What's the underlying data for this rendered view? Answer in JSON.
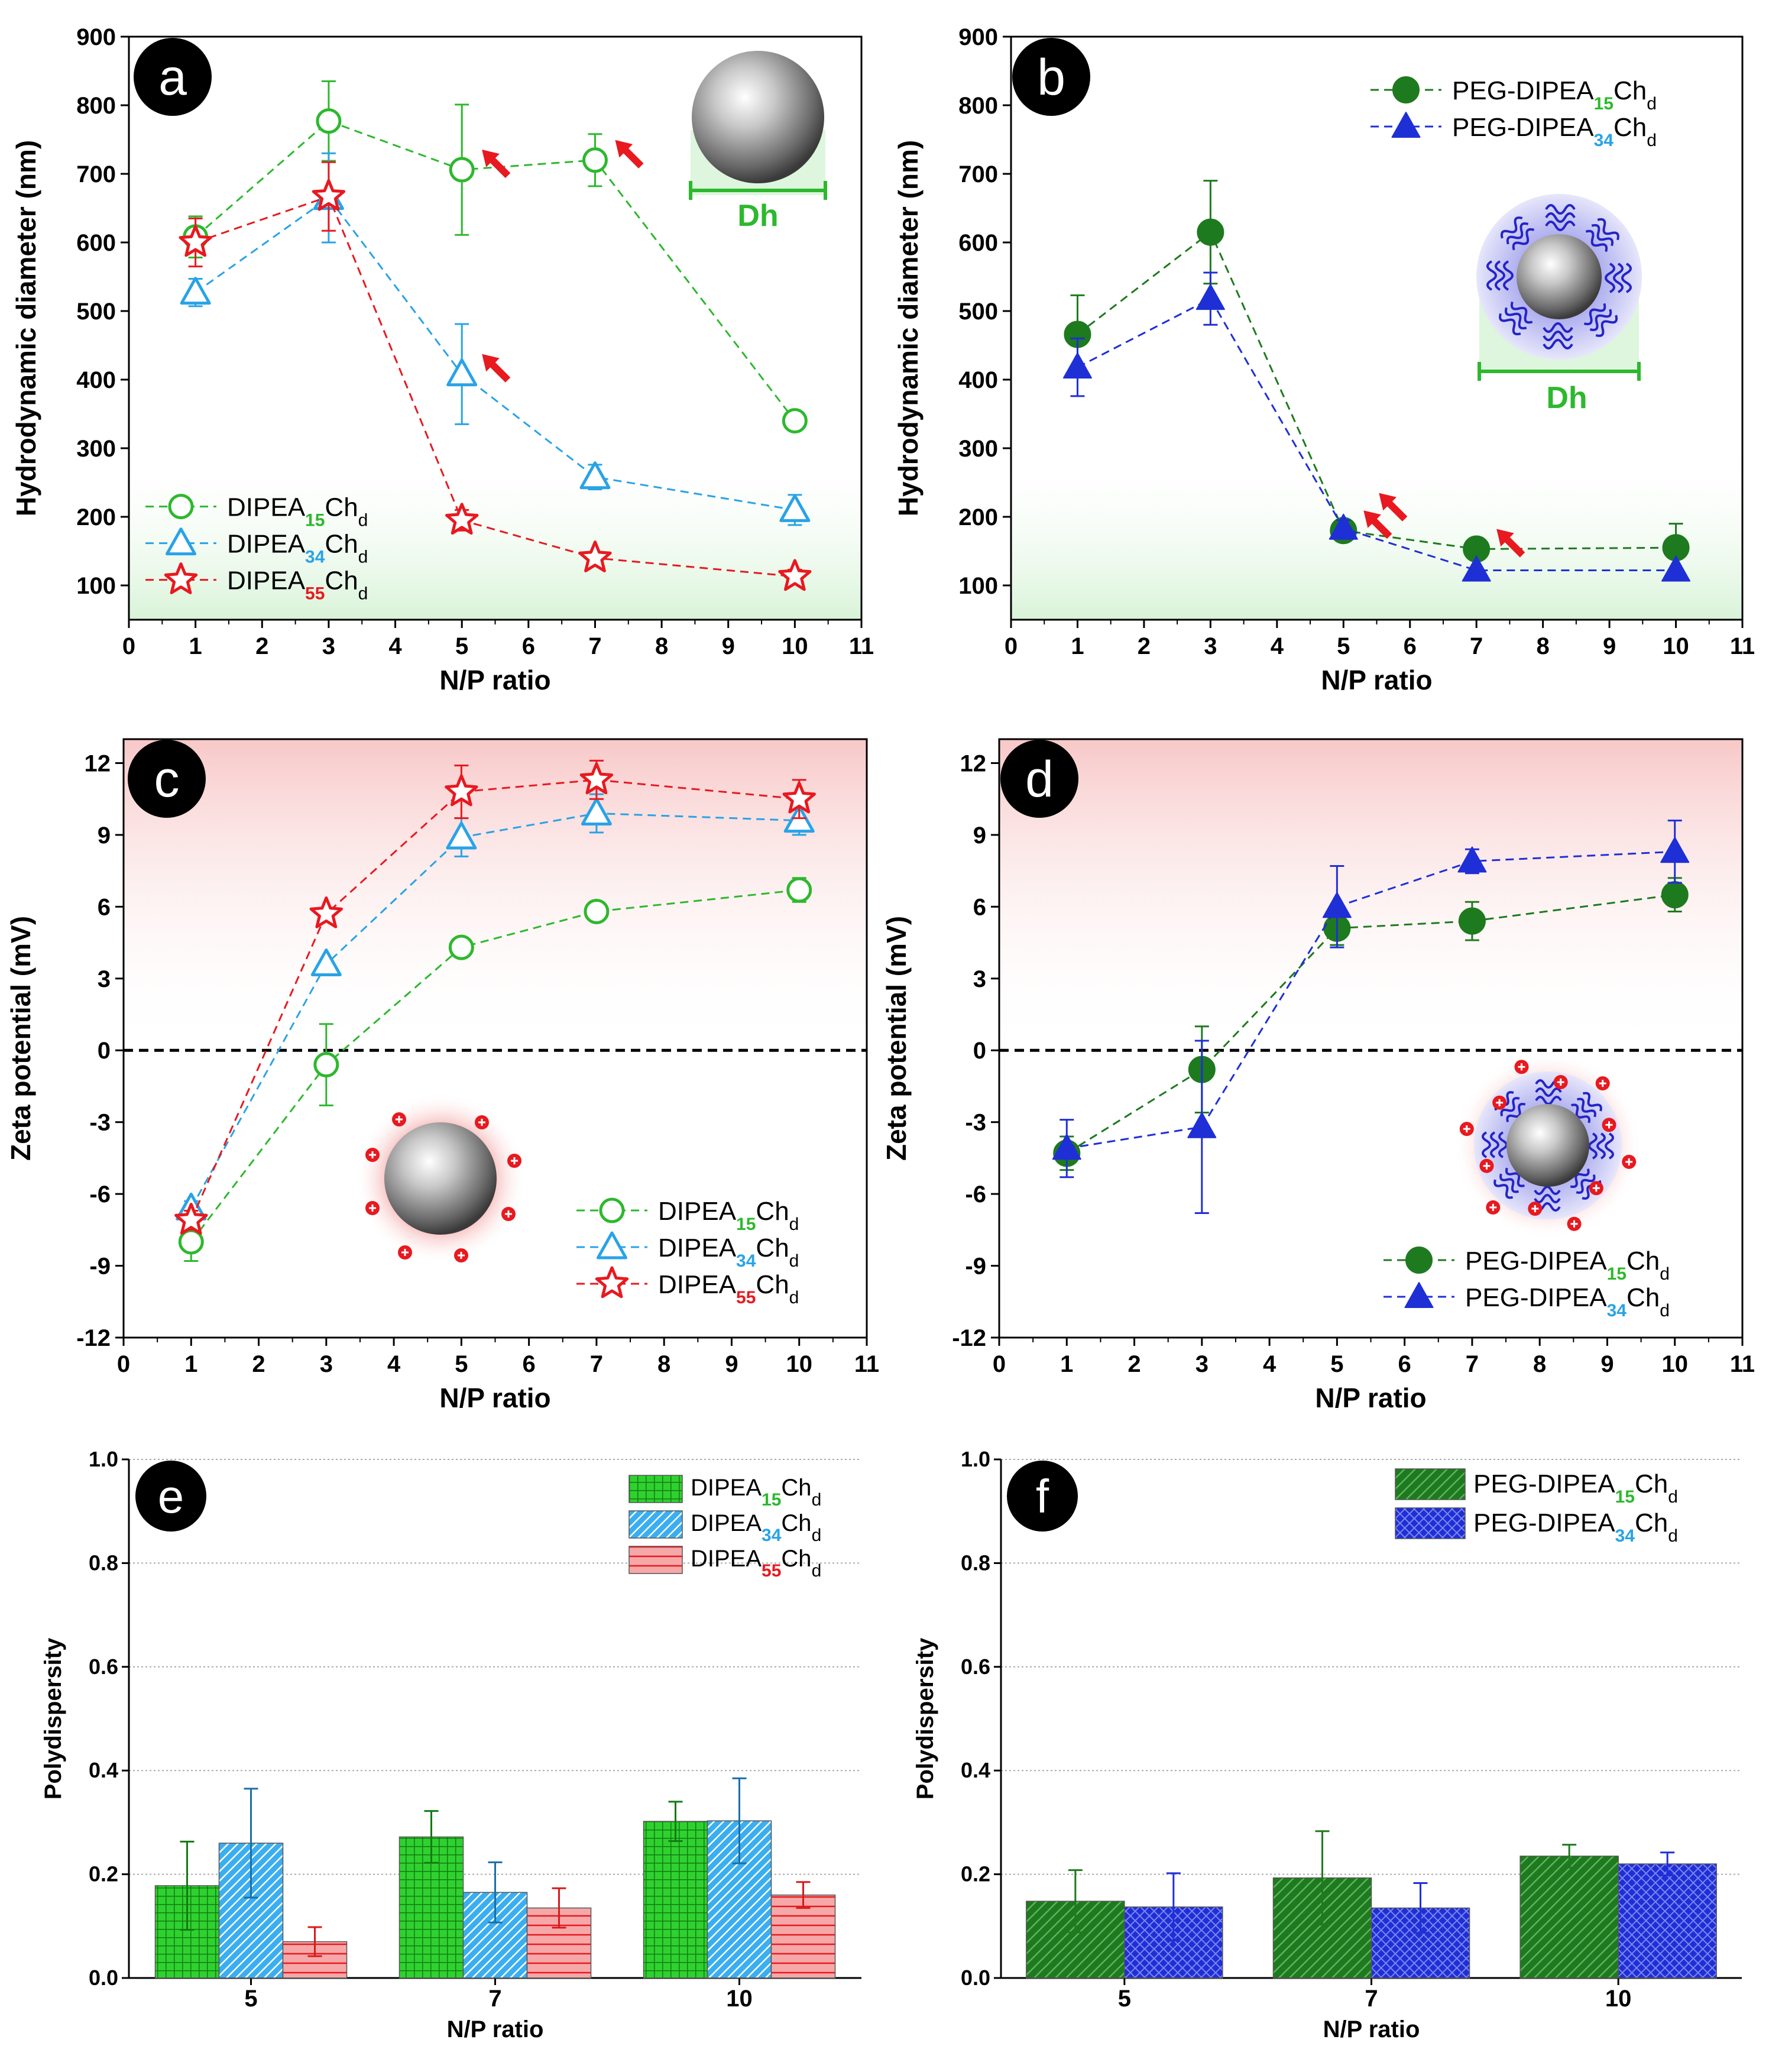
{
  "colors": {
    "green": "#2db82d",
    "blue": "#29a3e6",
    "red": "#e8191f",
    "darkgreen": "#1e7a1e",
    "navy": "#1f2fd6",
    "pink": "#f4a0a0",
    "arrow": "#e8191f"
  },
  "chart_data": [
    {
      "panel": "a",
      "type": "line",
      "ylabel": "Hydrodynamic diameter (nm)",
      "xlabel": "N/P ratio",
      "xlim": [
        0,
        11
      ],
      "ylim": [
        50,
        900
      ],
      "xticks": [
        0,
        1,
        2,
        3,
        4,
        5,
        6,
        7,
        8,
        9,
        10,
        11
      ],
      "yticks": [
        100,
        200,
        300,
        400,
        500,
        600,
        700,
        800,
        900
      ],
      "inset_label": "Dh",
      "legend_pos": "bottom-left",
      "arrows_at": [
        [
          5,
          0
        ],
        [
          7,
          0
        ],
        [
          5,
          1
        ]
      ],
      "series": [
        {
          "name": "DIPEA",
          "sub": "15",
          "tail": "Ch",
          "tailsub": "d",
          "color": "green",
          "marker": "circle-open",
          "x": [
            1,
            3,
            5,
            7,
            10
          ],
          "y": [
            608,
            777,
            706,
            720,
            340
          ],
          "err": [
            30,
            58,
            95,
            38,
            0
          ]
        },
        {
          "name": "DIPEA",
          "sub": "34",
          "tail": "Ch",
          "tailsub": "d",
          "color": "blue",
          "marker": "triangle-open",
          "x": [
            1,
            3,
            5,
            7,
            10
          ],
          "y": [
            527,
            665,
            408,
            258,
            210
          ],
          "err": [
            20,
            65,
            73,
            18,
            22
          ]
        },
        {
          "name": "DIPEA",
          "sub": "55",
          "tail": "Ch",
          "tailsub": "d",
          "color": "red",
          "marker": "star-open",
          "x": [
            1,
            3,
            5,
            7,
            10
          ],
          "y": [
            600,
            667,
            195,
            140,
            113
          ],
          "err": [
            35,
            50,
            15,
            0,
            10
          ]
        }
      ]
    },
    {
      "panel": "b",
      "type": "line",
      "ylabel": "Hydrodynamic diameter (nm)",
      "xlabel": "N/P ratio",
      "xlim": [
        0,
        11
      ],
      "ylim": [
        50,
        900
      ],
      "xticks": [
        0,
        1,
        2,
        3,
        4,
        5,
        6,
        7,
        8,
        9,
        10,
        11
      ],
      "yticks": [
        100,
        200,
        300,
        400,
        500,
        600,
        700,
        800,
        900
      ],
      "inset_label": "Dh",
      "legend_pos": "top-right",
      "arrows_at": [
        [
          5,
          0
        ],
        [
          5,
          1
        ],
        [
          7,
          0
        ]
      ],
      "series": [
        {
          "name": "PEG-DIPEA",
          "sub": "15",
          "tail": "Ch",
          "tailsub": "d",
          "color": "darkgreen",
          "marker": "circle-filled",
          "x": [
            1,
            3,
            5,
            7,
            10
          ],
          "y": [
            466,
            615,
            180,
            153,
            155
          ],
          "err": [
            57,
            75,
            0,
            0,
            35
          ]
        },
        {
          "name": "PEG-DIPEA",
          "sub": "34",
          "tail": "Ch",
          "tailsub": "d",
          "color": "navy",
          "marker": "triangle-filled",
          "x": [
            1,
            3,
            5,
            7,
            10
          ],
          "y": [
            418,
            518,
            183,
            122,
            122
          ],
          "err": [
            42,
            38,
            12,
            0,
            0
          ]
        }
      ]
    },
    {
      "panel": "c",
      "type": "line",
      "ylabel": "Zeta potential (mV)",
      "xlabel": "N/P ratio",
      "xlim": [
        0,
        11
      ],
      "ylim": [
        -12,
        13
      ],
      "xticks": [
        0,
        1,
        2,
        3,
        4,
        5,
        6,
        7,
        8,
        9,
        10,
        11
      ],
      "yticks": [
        -12,
        -9,
        -6,
        -3,
        0,
        3,
        6,
        9,
        12
      ],
      "zero_line": true,
      "legend_pos": "bottom-right",
      "series": [
        {
          "name": "DIPEA",
          "sub": "15",
          "tail": "Ch",
          "tailsub": "d",
          "color": "green",
          "marker": "circle-open",
          "x": [
            1,
            3,
            5,
            7,
            10
          ],
          "y": [
            -8.0,
            -0.6,
            4.3,
            5.8,
            6.7
          ],
          "err": [
            0.8,
            1.7,
            0,
            0,
            0.5
          ]
        },
        {
          "name": "DIPEA",
          "sub": "34",
          "tail": "Ch",
          "tailsub": "d",
          "color": "blue",
          "marker": "triangle-open",
          "x": [
            1,
            3,
            5,
            7,
            10
          ],
          "y": [
            -6.6,
            3.6,
            8.9,
            9.9,
            9.6
          ],
          "err": [
            0.3,
            0,
            0.8,
            0.8,
            0.6
          ]
        },
        {
          "name": "DIPEA",
          "sub": "55",
          "tail": "Ch",
          "tailsub": "d",
          "color": "red",
          "marker": "star-open",
          "x": [
            1,
            3,
            5,
            7,
            10
          ],
          "y": [
            -7.1,
            5.7,
            10.8,
            11.3,
            10.5
          ],
          "err": [
            0.4,
            0,
            1.1,
            0.8,
            0.8
          ]
        }
      ]
    },
    {
      "panel": "d",
      "type": "line",
      "ylabel": "Zeta potential (mV)",
      "xlabel": "N/P ratio",
      "xlim": [
        0,
        11
      ],
      "ylim": [
        -12,
        13
      ],
      "xticks": [
        0,
        1,
        2,
        3,
        4,
        5,
        6,
        7,
        8,
        9,
        10,
        11
      ],
      "yticks": [
        -12,
        -9,
        -6,
        -3,
        0,
        3,
        6,
        9,
        12
      ],
      "zero_line": true,
      "legend_pos": "bottom-right",
      "series": [
        {
          "name": "PEG-DIPEA",
          "sub": "15",
          "tail": "Ch",
          "tailsub": "d",
          "color": "darkgreen",
          "marker": "circle-filled",
          "x": [
            1,
            3,
            5,
            7,
            10
          ],
          "y": [
            -4.3,
            -0.8,
            5.1,
            5.4,
            6.5
          ],
          "err": [
            0.7,
            1.8,
            0.7,
            0.8,
            0.7
          ]
        },
        {
          "name": "PEG-DIPEA",
          "sub": "34",
          "tail": "Ch",
          "tailsub": "d",
          "color": "navy",
          "marker": "triangle-filled",
          "x": [
            1,
            3,
            5,
            7,
            10
          ],
          "y": [
            -4.1,
            -3.2,
            6.0,
            7.9,
            8.3
          ],
          "err": [
            1.2,
            3.6,
            1.7,
            0.5,
            1.3
          ]
        }
      ]
    },
    {
      "panel": "e",
      "type": "bar",
      "ylabel": "Polydispersity",
      "xlabel": "N/P ratio",
      "categories": [
        "5",
        "7",
        "10"
      ],
      "ylim": [
        0,
        1.0
      ],
      "yticks": [
        0.0,
        0.2,
        0.4,
        0.6,
        0.8,
        1.0
      ],
      "legend_pos": "top-right",
      "series": [
        {
          "name": "DIPEA",
          "sub": "15",
          "tail": "Ch",
          "tailsub": "d",
          "color": "green",
          "pattern": "grid",
          "values": [
            0.178,
            0.272,
            0.302
          ],
          "err": [
            0.085,
            0.05,
            0.038
          ]
        },
        {
          "name": "DIPEA",
          "sub": "34",
          "tail": "Ch",
          "tailsub": "d",
          "color": "blue",
          "pattern": "diag",
          "values": [
            0.26,
            0.165,
            0.303
          ],
          "err": [
            0.105,
            0.058,
            0.082
          ]
        },
        {
          "name": "DIPEA",
          "sub": "55",
          "tail": "Ch",
          "tailsub": "d",
          "color": "pink",
          "pattern": "horiz",
          "values": [
            0.07,
            0.135,
            0.16
          ],
          "err": [
            0.028,
            0.038,
            0.025
          ]
        }
      ]
    },
    {
      "panel": "f",
      "type": "bar",
      "ylabel": "Polydispersity",
      "xlabel": "N/P ratio",
      "categories": [
        "5",
        "7",
        "10"
      ],
      "ylim": [
        0,
        1.0
      ],
      "yticks": [
        0.0,
        0.2,
        0.4,
        0.6,
        0.8,
        1.0
      ],
      "legend_pos": "top-right",
      "series": [
        {
          "name": "PEG-DIPEA",
          "sub": "15",
          "tail": "Ch",
          "tailsub": "d",
          "color": "darkgreen",
          "pattern": "diag",
          "values": [
            0.148,
            0.193,
            0.235
          ],
          "err": [
            0.06,
            0.09,
            0.022
          ]
        },
        {
          "name": "PEG-DIPEA",
          "sub": "34",
          "tail": "Ch",
          "tailsub": "d",
          "color": "navy",
          "pattern": "cross",
          "values": [
            0.137,
            0.135,
            0.22
          ],
          "err": [
            0.065,
            0.048,
            0.022
          ]
        }
      ]
    }
  ]
}
